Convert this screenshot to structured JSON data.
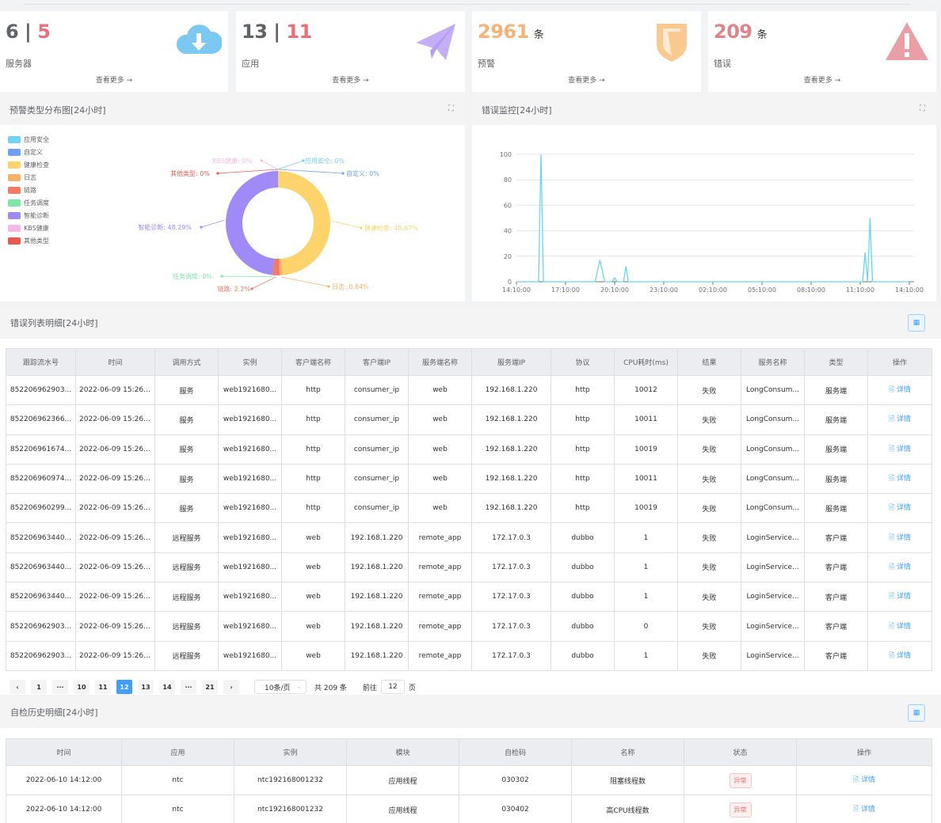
{
  "cards": [
    {
      "a": "6",
      "sep": " | ",
      "b": "5",
      "label": "服务器",
      "more": "查看更多 →",
      "icon": "cloud-download-icon",
      "color": "#7cc8f2"
    },
    {
      "a": "13",
      "sep": " | ",
      "b": "11",
      "label": "应用",
      "more": "查看更多 →",
      "icon": "paper-plane-icon",
      "color": "#c4aef5"
    },
    {
      "a": "2961",
      "unit": "条",
      "label": "预警",
      "more": "查看更多 →",
      "icon": "shield-icon",
      "color": "#f9c98f"
    },
    {
      "a": "209",
      "unit": "条",
      "label": "错误",
      "more": "查看更多 →",
      "icon": "warning-icon",
      "color": "#e8a0a6"
    }
  ],
  "warn_panel": {
    "title": "预警类型分布图[24小时]",
    "legend": [
      {
        "name": "应用安全",
        "color": "#73d3f5"
      },
      {
        "name": "自定义",
        "color": "#6ea1f5"
      },
      {
        "name": "健康检查",
        "color": "#fdd36b"
      },
      {
        "name": "日志",
        "color": "#f8b06a"
      },
      {
        "name": "链路",
        "color": "#f27b63"
      },
      {
        "name": "任务调度",
        "color": "#7ee6a6"
      },
      {
        "name": "智能诊断",
        "color": "#9f8af7"
      },
      {
        "name": "KBS健康",
        "color": "#f7b9e3"
      },
      {
        "name": "其他类型",
        "color": "#e85a4f"
      }
    ]
  },
  "chart_data": [
    {
      "type": "pie",
      "title": "预警类型分布图[24小时]",
      "slices": [
        {
          "name": "应用安全",
          "value": 0,
          "label": "应用安全: 0%",
          "color": "#73d3f5"
        },
        {
          "name": "自定义",
          "value": 0,
          "label": "自定义: 0%",
          "color": "#6ea1f5"
        },
        {
          "name": "健康检查",
          "value": 48.67,
          "label": "健康检查: 48.67%",
          "color": "#fdd36b"
        },
        {
          "name": "日志",
          "value": 0.84,
          "label": "日志: 0.84%",
          "color": "#f8b06a"
        },
        {
          "name": "链路",
          "value": 2.2,
          "label": "链路: 2.2%",
          "color": "#f27b63"
        },
        {
          "name": "任务调度",
          "value": 0,
          "label": "任务调度: 0%",
          "color": "#7ee6a6"
        },
        {
          "name": "智能诊断",
          "value": 48.29,
          "label": "智能诊断: 48.29%",
          "color": "#9f8af7"
        },
        {
          "name": "KBS健康",
          "value": 0,
          "label": "KBS健康: 0%",
          "color": "#f7b9e3"
        },
        {
          "name": "其他类型",
          "value": 0,
          "label": "其他类型: 0%",
          "color": "#e85a4f"
        }
      ]
    },
    {
      "type": "line",
      "title": "错误监控[24小时]",
      "xlabels": [
        "14:10:00",
        "17:10:00",
        "20:10:00",
        "23:10:00",
        "02:10:00",
        "05:10:00",
        "08:10:00",
        "11:10:00",
        "14:10:00"
      ],
      "ylim": [
        0,
        100
      ],
      "yticks": [
        0,
        20,
        40,
        60,
        80,
        100
      ],
      "grid": true,
      "color": "#6dd4ef",
      "points": [
        [
          0,
          0
        ],
        [
          0.42,
          0
        ],
        [
          0.45,
          0
        ],
        [
          0.5,
          100
        ],
        [
          0.55,
          0
        ],
        [
          1.6,
          0
        ],
        [
          1.7,
          17
        ],
        [
          1.8,
          0
        ],
        [
          1.95,
          0
        ],
        [
          2.0,
          3
        ],
        [
          2.05,
          0
        ],
        [
          2.18,
          0
        ],
        [
          2.23,
          12
        ],
        [
          2.28,
          0
        ],
        [
          7.0,
          0
        ],
        [
          7.05,
          0
        ],
        [
          7.1,
          23
        ],
        [
          7.15,
          0
        ],
        [
          7.2,
          50
        ],
        [
          7.25,
          0
        ],
        [
          8,
          0
        ]
      ]
    }
  ],
  "error_panel": {
    "title": "错误监控[24小时]"
  },
  "error_table": {
    "title": "错误列表明细[24小时]",
    "columns": [
      "跟踪流水号",
      "时间",
      "调用方式",
      "实例",
      "客户端名称",
      "客户端IP",
      "服务端名称",
      "服务端IP",
      "协议",
      "CPU耗时(ms)",
      "结果",
      "服务名称",
      "类型",
      "操作"
    ],
    "rows": [
      [
        "852206962903...",
        "2022-06-09 15:26:...",
        "服务",
        "web1921680...",
        "http",
        "consumer_ip",
        "web",
        "192.168.1.220",
        "http",
        "10012",
        "失败",
        "LongConsum...",
        "服务端",
        "🗎 详情"
      ],
      [
        "852206962366...",
        "2022-06-09 15:26:...",
        "服务",
        "web1921680...",
        "http",
        "consumer_ip",
        "web",
        "192.168.1.220",
        "http",
        "10011",
        "失败",
        "LongConsum...",
        "服务端",
        "🗎 详情"
      ],
      [
        "852206961674...",
        "2022-06-09 15:26:...",
        "服务",
        "web1921680...",
        "http",
        "consumer_ip",
        "web",
        "192.168.1.220",
        "http",
        "10019",
        "失败",
        "LongConsum...",
        "服务端",
        "🗎 详情"
      ],
      [
        "852206960974...",
        "2022-06-09 15:26:...",
        "服务",
        "web1921680...",
        "http",
        "consumer_ip",
        "web",
        "192.168.1.220",
        "http",
        "10011",
        "失败",
        "LongConsum...",
        "服务端",
        "🗎 详情"
      ],
      [
        "852206960299...",
        "2022-06-09 15:26:...",
        "服务",
        "web1921680...",
        "http",
        "consumer_ip",
        "web",
        "192.168.1.220",
        "http",
        "10019",
        "失败",
        "LongConsum...",
        "服务端",
        "🗎 详情"
      ],
      [
        "852206963440...",
        "2022-06-09 15:26:...",
        "远程服务",
        "web1921680...",
        "web",
        "192.168.1.220",
        "remote_app",
        "172.17.0.3",
        "dubbo",
        "1",
        "失败",
        "LoginService...",
        "客户端",
        "🗎 详情"
      ],
      [
        "852206963440...",
        "2022-06-09 15:26:...",
        "远程服务",
        "web1921680...",
        "web",
        "192.168.1.220",
        "remote_app",
        "172.17.0.3",
        "dubbo",
        "1",
        "失败",
        "LoginService...",
        "客户端",
        "🗎 详情"
      ],
      [
        "852206963440...",
        "2022-06-09 15:26:...",
        "远程服务",
        "web1921680...",
        "web",
        "192.168.1.220",
        "remote_app",
        "172.17.0.3",
        "dubbo",
        "1",
        "失败",
        "LoginService...",
        "客户端",
        "🗎 详情"
      ],
      [
        "852206962903...",
        "2022-06-09 15:26:...",
        "远程服务",
        "web1921680...",
        "web",
        "192.168.1.220",
        "remote_app",
        "172.17.0.3",
        "dubbo",
        "0",
        "失败",
        "LoginService...",
        "客户端",
        "🗎 详情"
      ],
      [
        "852206962903...",
        "2022-06-09 15:26:...",
        "远程服务",
        "web1921680...",
        "web",
        "192.168.1.220",
        "remote_app",
        "172.17.0.3",
        "dubbo",
        "1",
        "失败",
        "LoginService...",
        "客户端",
        "🗎 详情"
      ]
    ]
  },
  "pager": {
    "prev": "‹",
    "next": "›",
    "pages": [
      "1",
      "···",
      "10",
      "11",
      "12",
      "13",
      "14",
      "···",
      "21"
    ],
    "current": "12",
    "size": "10条/页",
    "total": "共 209 条",
    "goto": "前往",
    "goto_value": "12",
    "goto_unit": "页"
  },
  "check_table": {
    "title": "自检历史明细[24小时]",
    "columns": [
      "时间",
      "应用",
      "实例",
      "模块",
      "自检码",
      "名称",
      "状态",
      "操作"
    ],
    "rows": [
      [
        "2022-06-10 14:12:00",
        "ntc",
        "ntc192168001232",
        "应用线程",
        "030302",
        "阻塞线程数",
        "异常",
        "🗎 详情"
      ],
      [
        "2022-06-10 14:12:00",
        "ntc",
        "ntc192168001232",
        "应用线程",
        "030402",
        "高CPU线程数",
        "异常",
        "🗎 详情"
      ]
    ]
  },
  "icons": {
    "expand": "⛶",
    "columns": "▦",
    "chevron": "⌄"
  }
}
